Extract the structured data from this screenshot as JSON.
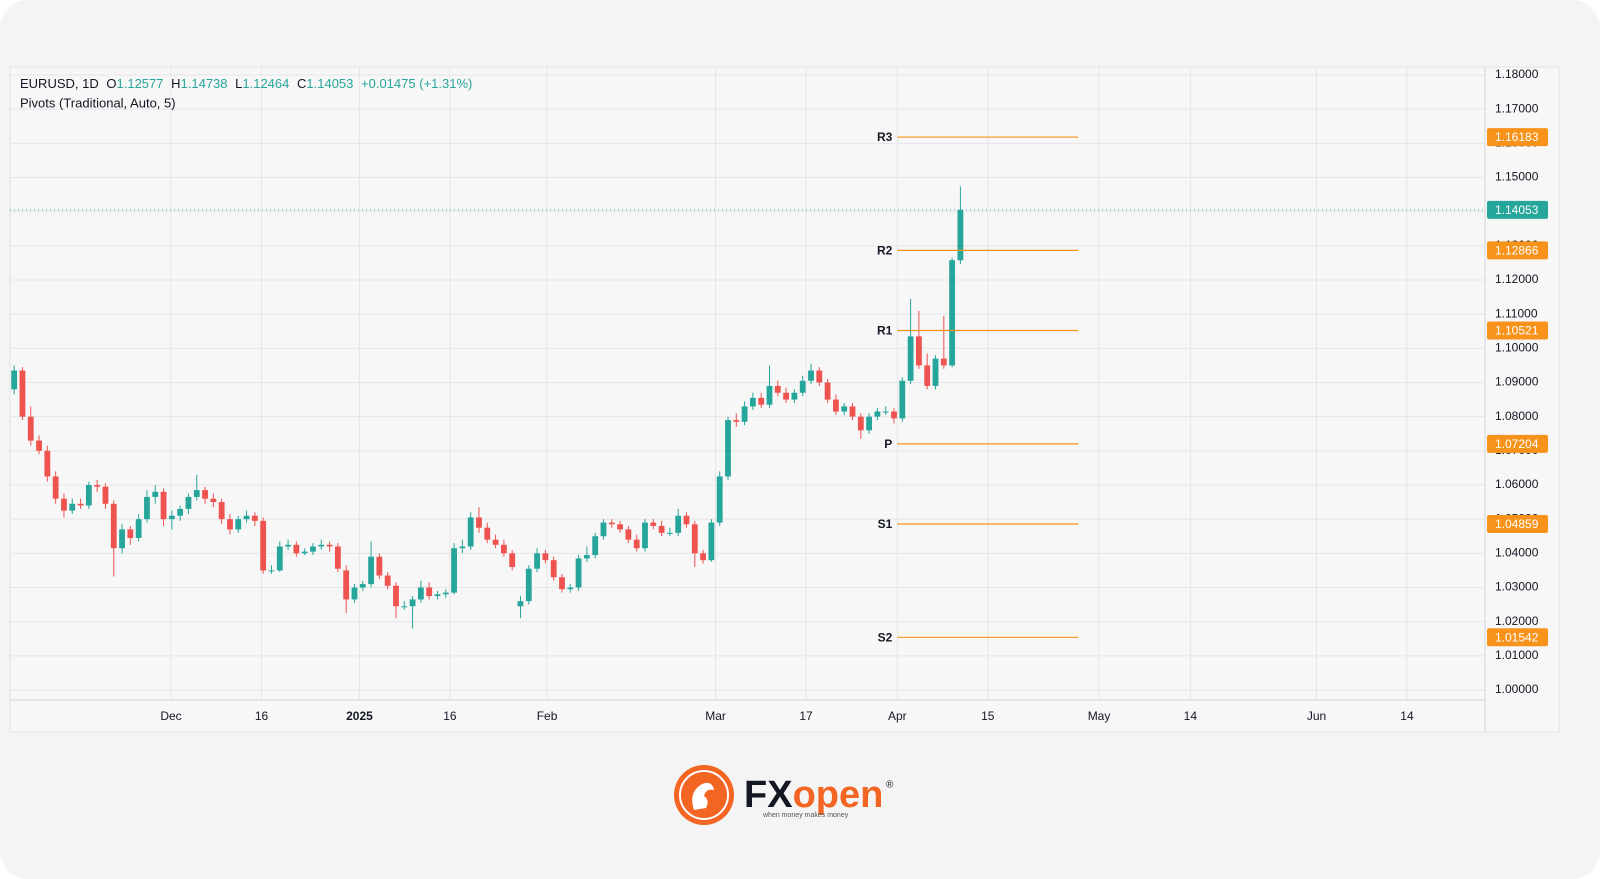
{
  "chart_data": {
    "type": "candlestick",
    "symbol": "EURUSD, 1D",
    "ohlc_labels": [
      "O",
      "H",
      "L",
      "C"
    ],
    "change": "+0.01475",
    "change_pct": "(+1.31%)",
    "indicator": "Pivots (Traditional, Auto, 5)",
    "up_color": "#26a69a",
    "down_color": "#ef5350",
    "pivot_color": "#f7931a",
    "grid": true,
    "xlim": [
      -0.5,
      177.2
    ],
    "ylim": [
      0.99707,
      1.18234
    ],
    "xticks": [
      {
        "value": 18.9,
        "label": "Dec"
      },
      {
        "value": 29.8,
        "label": "16"
      },
      {
        "value": 41.6,
        "label": "2025",
        "bold": true
      },
      {
        "value": 52.5,
        "label": "16"
      },
      {
        "value": 64.2,
        "label": "Feb"
      },
      {
        "value": 84.5,
        "label": "Mar"
      },
      {
        "value": 95.4,
        "label": "17"
      },
      {
        "value": 106.4,
        "label": "Apr"
      },
      {
        "value": 117.3,
        "label": "15"
      },
      {
        "value": 130.7,
        "label": "May"
      },
      {
        "value": 141.7,
        "label": "14"
      },
      {
        "value": 156.9,
        "label": "Jun"
      },
      {
        "value": 167.8,
        "label": "14"
      }
    ],
    "yticks": [
      {
        "value": 1.0,
        "label": "1.00000"
      },
      {
        "value": 1.01,
        "label": "1.01000"
      },
      {
        "value": 1.02,
        "label": "1.02000"
      },
      {
        "value": 1.03,
        "label": "1.03000"
      },
      {
        "value": 1.04,
        "label": "1.04000"
      },
      {
        "value": 1.05,
        "label": "1.05000"
      },
      {
        "value": 1.06,
        "label": "1.06000"
      },
      {
        "value": 1.07,
        "label": "1.07000"
      },
      {
        "value": 1.08,
        "label": "1.08000"
      },
      {
        "value": 1.09,
        "label": "1.09000"
      },
      {
        "value": 1.1,
        "label": "1.10000"
      },
      {
        "value": 1.11,
        "label": "1.11000"
      },
      {
        "value": 1.12,
        "label": "1.12000"
      },
      {
        "value": 1.13,
        "label": "1.13000"
      },
      {
        "value": 1.14,
        "label": "1.14000"
      },
      {
        "value": 1.15,
        "label": "1.15000"
      },
      {
        "value": 1.16,
        "label": "1.16000"
      },
      {
        "value": 1.17,
        "label": "1.17000"
      },
      {
        "value": 1.18,
        "label": "1.18000"
      }
    ],
    "pivots": {
      "from": 106.4,
      "to": 128.2,
      "levels": [
        {
          "name": "R3",
          "value": 1.16183
        },
        {
          "name": "R2",
          "value": 1.12866
        },
        {
          "name": "R1",
          "value": 1.10521
        },
        {
          "name": "P",
          "value": 1.07204
        },
        {
          "name": "S1",
          "value": 1.04859
        },
        {
          "name": "S2",
          "value": 1.01542
        }
      ]
    },
    "candles": [
      {
        "o": 1.088,
        "h": 1.095,
        "l": 1.0865,
        "c": 1.0935
      },
      {
        "o": 1.0935,
        "h": 1.0945,
        "l": 1.079,
        "c": 1.08
      },
      {
        "o": 1.08,
        "h": 1.083,
        "l": 1.0715,
        "c": 1.073
      },
      {
        "o": 1.073,
        "h": 1.0745,
        "l": 1.069,
        "c": 1.07
      },
      {
        "o": 1.07,
        "h": 1.0715,
        "l": 1.061,
        "c": 1.0625
      },
      {
        "o": 1.0625,
        "h": 1.064,
        "l": 1.0545,
        "c": 1.056
      },
      {
        "o": 1.056,
        "h": 1.0575,
        "l": 1.0505,
        "c": 1.0525
      },
      {
        "o": 1.0525,
        "h": 1.056,
        "l": 1.0515,
        "c": 1.0545
      },
      {
        "o": 1.0545,
        "h": 1.056,
        "l": 1.053,
        "c": 1.054
      },
      {
        "o": 1.054,
        "h": 1.061,
        "l": 1.053,
        "c": 1.06
      },
      {
        "o": 1.06,
        "h": 1.0615,
        "l": 1.058,
        "c": 1.0595
      },
      {
        "o": 1.0595,
        "h": 1.0605,
        "l": 1.053,
        "c": 1.0545
      },
      {
        "o": 1.0545,
        "h": 1.0555,
        "l": 1.0332,
        "c": 1.0415
      },
      {
        "o": 1.0415,
        "h": 1.0485,
        "l": 1.04,
        "c": 1.047
      },
      {
        "o": 1.047,
        "h": 1.048,
        "l": 1.0425,
        "c": 1.0445
      },
      {
        "o": 1.0445,
        "h": 1.0515,
        "l": 1.0435,
        "c": 1.05
      },
      {
        "o": 1.05,
        "h": 1.0585,
        "l": 1.049,
        "c": 1.0565
      },
      {
        "o": 1.0565,
        "h": 1.06,
        "l": 1.0545,
        "c": 1.058
      },
      {
        "o": 1.058,
        "h": 1.059,
        "l": 1.048,
        "c": 1.05
      },
      {
        "o": 1.05,
        "h": 1.0525,
        "l": 1.047,
        "c": 1.051
      },
      {
        "o": 1.051,
        "h": 1.054,
        "l": 1.0495,
        "c": 1.053
      },
      {
        "o": 1.053,
        "h": 1.0575,
        "l": 1.0515,
        "c": 1.0565
      },
      {
        "o": 1.0565,
        "h": 1.063,
        "l": 1.0555,
        "c": 1.0585
      },
      {
        "o": 1.0585,
        "h": 1.0595,
        "l": 1.0545,
        "c": 1.056
      },
      {
        "o": 1.056,
        "h": 1.0575,
        "l": 1.0535,
        "c": 1.055
      },
      {
        "o": 1.055,
        "h": 1.056,
        "l": 1.0485,
        "c": 1.05
      },
      {
        "o": 1.05,
        "h": 1.0515,
        "l": 1.0455,
        "c": 1.047
      },
      {
        "o": 1.047,
        "h": 1.051,
        "l": 1.046,
        "c": 1.05
      },
      {
        "o": 1.05,
        "h": 1.0525,
        "l": 1.049,
        "c": 1.051
      },
      {
        "o": 1.051,
        "h": 1.052,
        "l": 1.048,
        "c": 1.0495
      },
      {
        "o": 1.0495,
        "h": 1.0505,
        "l": 1.034,
        "c": 1.035
      },
      {
        "o": 1.035,
        "h": 1.0365,
        "l": 1.034,
        "c": 1.035
      },
      {
        "o": 1.035,
        "h": 1.0435,
        "l": 1.0345,
        "c": 1.042
      },
      {
        "o": 1.042,
        "h": 1.044,
        "l": 1.041,
        "c": 1.0425
      },
      {
        "o": 1.0425,
        "h": 1.0435,
        "l": 1.039,
        "c": 1.04
      },
      {
        "o": 1.04,
        "h": 1.0415,
        "l": 1.0395,
        "c": 1.0405
      },
      {
        "o": 1.0405,
        "h": 1.043,
        "l": 1.0395,
        "c": 1.042
      },
      {
        "o": 1.042,
        "h": 1.044,
        "l": 1.041,
        "c": 1.0425
      },
      {
        "o": 1.0425,
        "h": 1.0435,
        "l": 1.0405,
        "c": 1.042
      },
      {
        "o": 1.042,
        "h": 1.043,
        "l": 1.0345,
        "c": 1.0355
      },
      {
        "o": 1.035,
        "h": 1.0365,
        "l": 1.0225,
        "c": 1.0265
      },
      {
        "o": 1.0265,
        "h": 1.031,
        "l": 1.0255,
        "c": 1.03
      },
      {
        "o": 1.03,
        "h": 1.032,
        "l": 1.029,
        "c": 1.031
      },
      {
        "o": 1.031,
        "h": 1.0435,
        "l": 1.03,
        "c": 1.039
      },
      {
        "o": 1.039,
        "h": 1.04,
        "l": 1.0325,
        "c": 1.0335
      },
      {
        "o": 1.0335,
        "h": 1.0345,
        "l": 1.0295,
        "c": 1.0305
      },
      {
        "o": 1.0305,
        "h": 1.0315,
        "l": 1.021,
        "c": 1.0245
      },
      {
        "o": 1.0245,
        "h": 1.026,
        "l": 1.0235,
        "c": 1.0245
      },
      {
        "o": 1.0245,
        "h": 1.0275,
        "l": 1.018,
        "c": 1.0265
      },
      {
        "o": 1.0265,
        "h": 1.032,
        "l": 1.0255,
        "c": 1.03
      },
      {
        "o": 1.03,
        "h": 1.0315,
        "l": 1.0265,
        "c": 1.0275
      },
      {
        "o": 1.0275,
        "h": 1.029,
        "l": 1.0265,
        "c": 1.028
      },
      {
        "o": 1.028,
        "h": 1.0295,
        "l": 1.027,
        "c": 1.0285
      },
      {
        "o": 1.0285,
        "h": 1.043,
        "l": 1.028,
        "c": 1.0415
      },
      {
        "o": 1.0415,
        "h": 1.044,
        "l": 1.04,
        "c": 1.042
      },
      {
        "o": 1.042,
        "h": 1.052,
        "l": 1.041,
        "c": 1.0505
      },
      {
        "o": 1.0505,
        "h": 1.0535,
        "l": 1.046,
        "c": 1.0475
      },
      {
        "o": 1.0475,
        "h": 1.049,
        "l": 1.043,
        "c": 1.044
      },
      {
        "o": 1.044,
        "h": 1.0455,
        "l": 1.0415,
        "c": 1.0425
      },
      {
        "o": 1.0425,
        "h": 1.044,
        "l": 1.039,
        "c": 1.04
      },
      {
        "o": 1.04,
        "h": 1.041,
        "l": 1.035,
        "c": 1.036
      },
      {
        "o": 1.0245,
        "h": 1.0275,
        "l": 1.021,
        "c": 1.026
      },
      {
        "o": 1.026,
        "h": 1.0365,
        "l": 1.025,
        "c": 1.0355
      },
      {
        "o": 1.0355,
        "h": 1.0415,
        "l": 1.0345,
        "c": 1.04
      },
      {
        "o": 1.04,
        "h": 1.041,
        "l": 1.037,
        "c": 1.038
      },
      {
        "o": 1.038,
        "h": 1.039,
        "l": 1.032,
        "c": 1.033
      },
      {
        "o": 1.033,
        "h": 1.034,
        "l": 1.0285,
        "c": 1.0295
      },
      {
        "o": 1.0295,
        "h": 1.031,
        "l": 1.0285,
        "c": 1.03
      },
      {
        "o": 1.03,
        "h": 1.0395,
        "l": 1.029,
        "c": 1.0385
      },
      {
        "o": 1.0385,
        "h": 1.042,
        "l": 1.0375,
        "c": 1.0395
      },
      {
        "o": 1.0395,
        "h": 1.046,
        "l": 1.0385,
        "c": 1.045
      },
      {
        "o": 1.045,
        "h": 1.05,
        "l": 1.044,
        "c": 1.049
      },
      {
        "o": 1.049,
        "h": 1.05,
        "l": 1.0475,
        "c": 1.0485
      },
      {
        "o": 1.0485,
        "h": 1.0495,
        "l": 1.046,
        "c": 1.047
      },
      {
        "o": 1.047,
        "h": 1.048,
        "l": 1.043,
        "c": 1.044
      },
      {
        "o": 1.044,
        "h": 1.0455,
        "l": 1.0405,
        "c": 1.0415
      },
      {
        "o": 1.0415,
        "h": 1.05,
        "l": 1.0405,
        "c": 1.049
      },
      {
        "o": 1.049,
        "h": 1.05,
        "l": 1.047,
        "c": 1.048
      },
      {
        "o": 1.048,
        "h": 1.0495,
        "l": 1.045,
        "c": 1.046
      },
      {
        "o": 1.046,
        "h": 1.0475,
        "l": 1.045,
        "c": 1.046
      },
      {
        "o": 1.046,
        "h": 1.053,
        "l": 1.045,
        "c": 1.051
      },
      {
        "o": 1.051,
        "h": 1.052,
        "l": 1.0475,
        "c": 1.0485
      },
      {
        "o": 1.0485,
        "h": 1.0495,
        "l": 1.036,
        "c": 1.04
      },
      {
        "o": 1.04,
        "h": 1.041,
        "l": 1.037,
        "c": 1.038
      },
      {
        "o": 1.038,
        "h": 1.05,
        "l": 1.0375,
        "c": 1.049
      },
      {
        "o": 1.049,
        "h": 1.064,
        "l": 1.048,
        "c": 1.0625
      },
      {
        "o": 1.0625,
        "h": 1.08,
        "l": 1.0615,
        "c": 1.079
      },
      {
        "o": 1.079,
        "h": 1.081,
        "l": 1.077,
        "c": 1.0785
      },
      {
        "o": 1.0785,
        "h": 1.0845,
        "l": 1.0775,
        "c": 1.083
      },
      {
        "o": 1.083,
        "h": 1.087,
        "l": 1.082,
        "c": 1.0855
      },
      {
        "o": 1.0855,
        "h": 1.087,
        "l": 1.0825,
        "c": 1.0835
      },
      {
        "o": 1.0835,
        "h": 1.095,
        "l": 1.0825,
        "c": 1.089
      },
      {
        "o": 1.089,
        "h": 1.0905,
        "l": 1.086,
        "c": 1.087
      },
      {
        "o": 1.087,
        "h": 1.0885,
        "l": 1.084,
        "c": 1.085
      },
      {
        "o": 1.085,
        "h": 1.088,
        "l": 1.084,
        "c": 1.087
      },
      {
        "o": 1.087,
        "h": 1.092,
        "l": 1.086,
        "c": 1.0905
      },
      {
        "o": 1.0905,
        "h": 1.0955,
        "l": 1.0895,
        "c": 1.0935
      },
      {
        "o": 1.0935,
        "h": 1.0945,
        "l": 1.089,
        "c": 1.09
      },
      {
        "o": 1.09,
        "h": 1.091,
        "l": 1.084,
        "c": 1.085
      },
      {
        "o": 1.085,
        "h": 1.0865,
        "l": 1.0805,
        "c": 1.0815
      },
      {
        "o": 1.0815,
        "h": 1.084,
        "l": 1.0805,
        "c": 1.083
      },
      {
        "o": 1.083,
        "h": 1.084,
        "l": 1.079,
        "c": 1.08
      },
      {
        "o": 1.08,
        "h": 1.081,
        "l": 1.0735,
        "c": 1.076
      },
      {
        "o": 1.076,
        "h": 1.081,
        "l": 1.075,
        "c": 1.08
      },
      {
        "o": 1.08,
        "h": 1.0825,
        "l": 1.079,
        "c": 1.0815
      },
      {
        "o": 1.0815,
        "h": 1.083,
        "l": 1.0805,
        "c": 1.0815
      },
      {
        "o": 1.0815,
        "h": 1.0825,
        "l": 1.078,
        "c": 1.0795
      },
      {
        "o": 1.0795,
        "h": 1.0915,
        "l": 1.0785,
        "c": 1.0905
      },
      {
        "o": 1.0905,
        "h": 1.1145,
        "l": 1.0895,
        "c": 1.1035
      },
      {
        "o": 1.1035,
        "h": 1.111,
        "l": 1.094,
        "c": 1.095
      },
      {
        "o": 1.095,
        "h": 1.0985,
        "l": 1.088,
        "c": 1.089
      },
      {
        "o": 1.089,
        "h": 1.098,
        "l": 1.088,
        "c": 1.097
      },
      {
        "o": 1.097,
        "h": 1.1095,
        "l": 1.094,
        "c": 1.095
      },
      {
        "o": 1.095,
        "h": 1.1265,
        "l": 1.0945,
        "c": 1.1258
      },
      {
        "o": 1.12577,
        "h": 1.14738,
        "l": 1.12464,
        "c": 1.14053
      }
    ]
  },
  "brand": {
    "name_a": "FX",
    "name_b": "open",
    "mark": "®",
    "tagline": "when money makes money"
  }
}
